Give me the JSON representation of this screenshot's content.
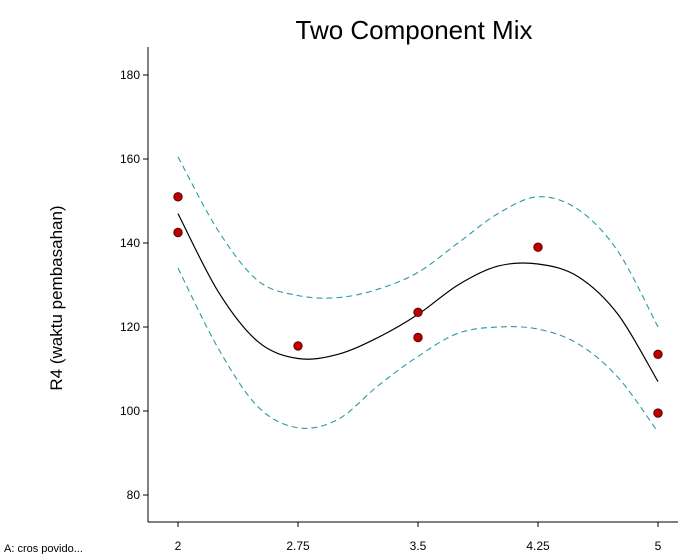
{
  "chart_data": {
    "type": "line",
    "title": "Two Component Mix",
    "xlabel": "A: cros povido...",
    "ylabel": "R4 (waktu pembasahan)",
    "xlim": [
      2,
      5
    ],
    "ylim": [
      73,
      186
    ],
    "x_ticks": [
      "2",
      "2.75",
      "3.5",
      "4.25",
      "5"
    ],
    "y_ticks": [
      "80",
      "100",
      "120",
      "140",
      "160",
      "180"
    ],
    "grid": false,
    "colors": {
      "fit": "#000000",
      "ci": "#2a9ba3",
      "points": "#c00000",
      "point_outline": "#5a0000",
      "axis": "#000000"
    },
    "series": [
      {
        "line": "fit",
        "x": [
          2,
          2.25,
          2.5,
          2.75,
          3,
          3.25,
          3.5,
          3.75,
          4,
          4.25,
          4.5,
          4.75,
          5
        ],
        "y": [
          147,
          128.5,
          116.5,
          112.5,
          113.5,
          117.5,
          123,
          130,
          134.5,
          135,
          132,
          123,
          107
        ]
      },
      {
        "line": "ci-upper",
        "x": [
          2,
          2.25,
          2.5,
          2.75,
          3,
          3.25,
          3.5,
          3.75,
          4,
          4.25,
          4.5,
          4.75,
          5
        ],
        "y": [
          160.5,
          143,
          131,
          127.5,
          127,
          129,
          133,
          140,
          147,
          151,
          148,
          138,
          120
        ]
      },
      {
        "line": "ci-lower",
        "x": [
          2,
          2.25,
          2.5,
          2.75,
          3,
          3.25,
          3.5,
          3.75,
          4,
          4.25,
          4.5,
          4.75,
          5
        ],
        "y": [
          134,
          115,
          101,
          96,
          98,
          106,
          113,
          118.5,
          120,
          119.5,
          116,
          108,
          95
        ]
      }
    ],
    "points": {
      "x": [
        2,
        2,
        2.75,
        3.5,
        3.5,
        4.25,
        5,
        5
      ],
      "y": [
        151,
        142.5,
        115.5,
        123.5,
        117.5,
        139,
        113.5,
        99.5
      ]
    }
  }
}
